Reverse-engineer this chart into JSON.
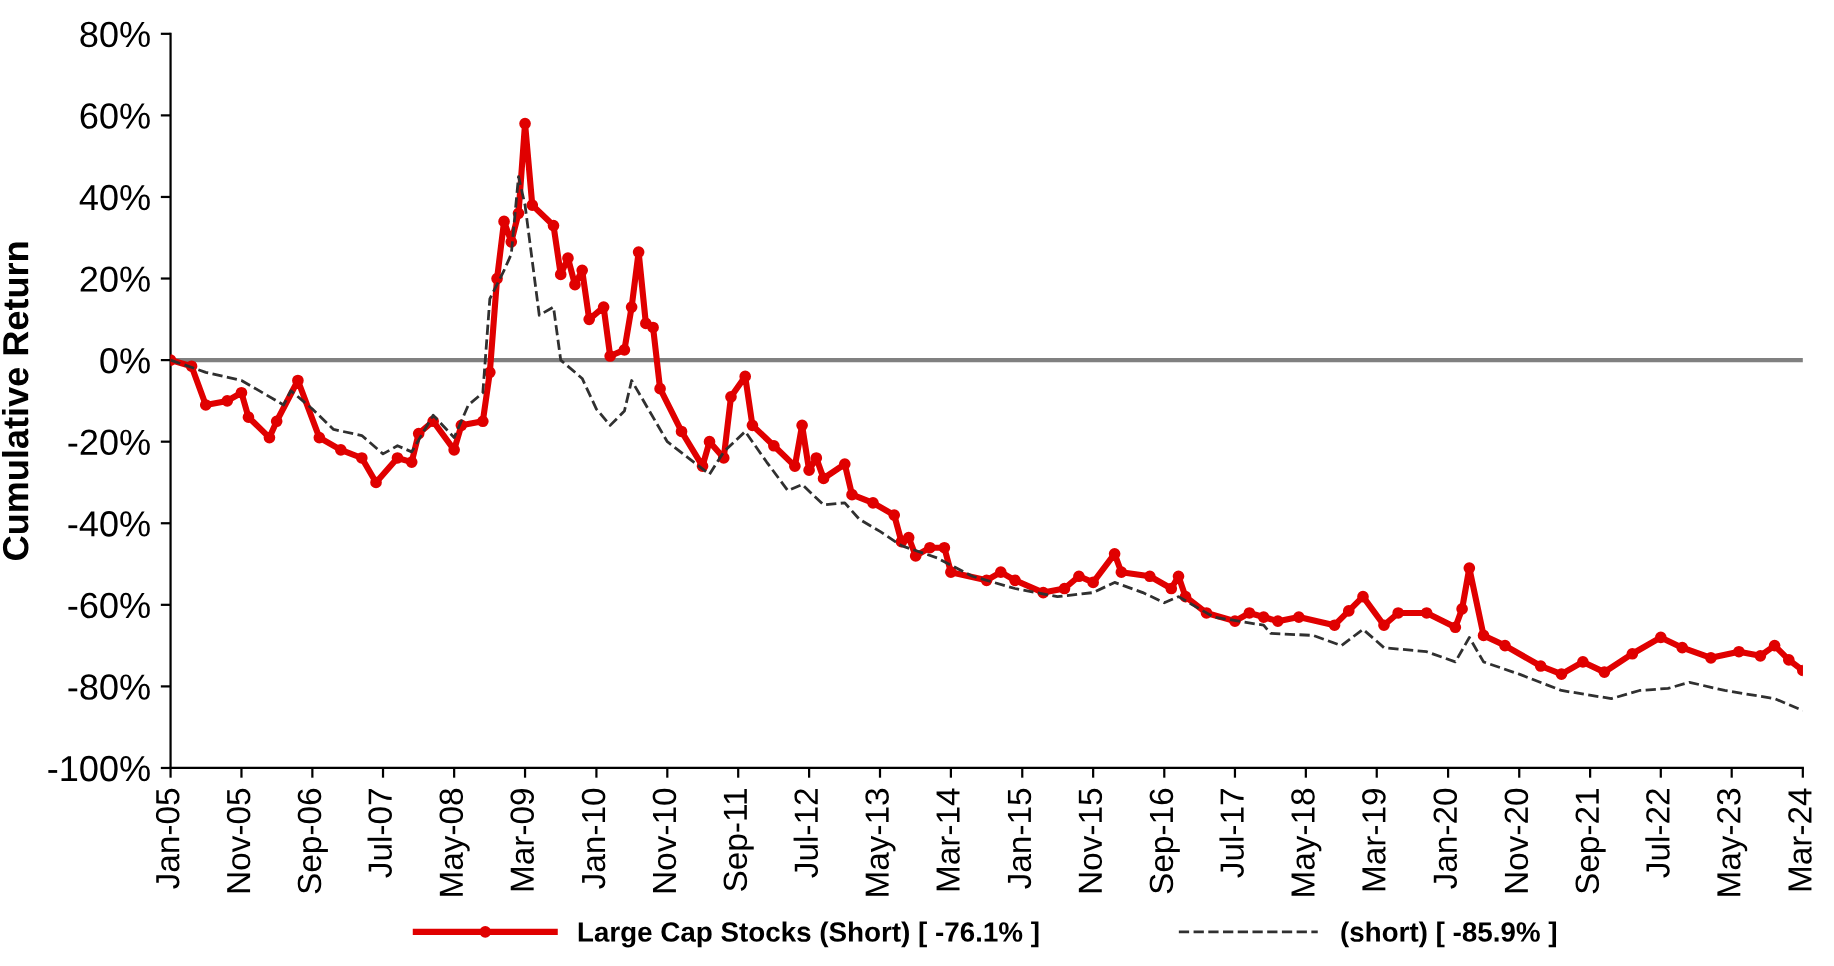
{
  "chart_data": {
    "type": "line",
    "ylabel": "Cumulative Return",
    "xlim": [
      "2005-01",
      "2024-03"
    ],
    "xticks": [
      {
        "value": "2005-01",
        "label": "Jan-05"
      },
      {
        "value": "2005-11",
        "label": "Nov-05"
      },
      {
        "value": "2006-09",
        "label": "Sep-06"
      },
      {
        "value": "2007-07",
        "label": "Jul-07"
      },
      {
        "value": "2008-05",
        "label": "May-08"
      },
      {
        "value": "2009-03",
        "label": "Mar-09"
      },
      {
        "value": "2010-01",
        "label": "Jan-10"
      },
      {
        "value": "2010-11",
        "label": "Nov-10"
      },
      {
        "value": "2011-09",
        "label": "Sep-11"
      },
      {
        "value": "2012-07",
        "label": "Jul-12"
      },
      {
        "value": "2013-05",
        "label": "May-13"
      },
      {
        "value": "2014-03",
        "label": "Mar-14"
      },
      {
        "value": "2015-01",
        "label": "Jan-15"
      },
      {
        "value": "2015-11",
        "label": "Nov-15"
      },
      {
        "value": "2016-09",
        "label": "Sep-16"
      },
      {
        "value": "2017-07",
        "label": "Jul-17"
      },
      {
        "value": "2018-05",
        "label": "May-18"
      },
      {
        "value": "2019-03",
        "label": "Mar-19"
      },
      {
        "value": "2020-01",
        "label": "Jan-20"
      },
      {
        "value": "2020-11",
        "label": "Nov-20"
      },
      {
        "value": "2021-09",
        "label": "Sep-21"
      },
      {
        "value": "2022-07",
        "label": "Jul-22"
      },
      {
        "value": "2023-05",
        "label": "May-23"
      },
      {
        "value": "2024-03",
        "label": "Mar-24"
      }
    ],
    "ylim": [
      -100,
      80
    ],
    "yticks": [
      {
        "value": -100,
        "label": "-100%"
      },
      {
        "value": -80,
        "label": "-80%"
      },
      {
        "value": -60,
        "label": "-60%"
      },
      {
        "value": -40,
        "label": "-40%"
      },
      {
        "value": -20,
        "label": "-20%"
      },
      {
        "value": 0,
        "label": "0%"
      },
      {
        "value": 20,
        "label": "20%"
      },
      {
        "value": 40,
        "label": "40%"
      },
      {
        "value": 60,
        "label": "60%"
      },
      {
        "value": 80,
        "label": "80%"
      }
    ],
    "ref_lines": [
      {
        "axis": "y",
        "value": 0,
        "color": "#808080"
      }
    ],
    "grid": false,
    "legend": "bottom",
    "series": [
      {
        "name": "Large Cap Stocks (Short) [ -76.1% ]",
        "color": "#e00000",
        "marker": "circle",
        "line_style": "solid",
        "x": [
          "2005-01",
          "2005-04",
          "2005-06",
          "2005-09",
          "2005-11",
          "2005-12",
          "2006-03",
          "2006-04",
          "2006-07",
          "2006-10",
          "2007-01",
          "2007-04",
          "2007-06",
          "2007-09",
          "2007-11",
          "2007-12",
          "2008-02",
          "2008-05",
          "2008-06",
          "2008-09",
          "2008-10",
          "2008-11",
          "2008-12",
          "2009-01",
          "2009-02",
          "2009-03",
          "2009-04",
          "2009-07",
          "2009-08",
          "2009-09",
          "2009-10",
          "2009-11",
          "2009-12",
          "2010-02",
          "2010-03",
          "2010-05",
          "2010-06",
          "2010-07",
          "2010-08",
          "2010-09",
          "2010-10",
          "2011-01",
          "2011-04",
          "2011-05",
          "2011-07",
          "2011-08",
          "2011-10",
          "2011-11",
          "2012-02",
          "2012-05",
          "2012-06",
          "2012-07",
          "2012-08",
          "2012-09",
          "2012-12",
          "2013-01",
          "2013-04",
          "2013-07",
          "2013-08",
          "2013-09",
          "2013-10",
          "2013-12",
          "2014-02",
          "2014-03",
          "2014-08",
          "2014-10",
          "2014-12",
          "2015-04",
          "2015-07",
          "2015-09",
          "2015-11",
          "2016-02",
          "2016-03",
          "2016-07",
          "2016-10",
          "2016-11",
          "2016-12",
          "2017-03",
          "2017-07",
          "2017-09",
          "2017-11",
          "2018-01",
          "2018-04",
          "2018-09",
          "2018-11",
          "2019-01",
          "2019-04",
          "2019-06",
          "2019-10",
          "2020-02",
          "2020-03",
          "2020-04",
          "2020-06",
          "2020-09",
          "2021-02",
          "2021-05",
          "2021-08",
          "2021-11",
          "2022-03",
          "2022-07",
          "2022-10",
          "2023-02",
          "2023-06",
          "2023-09",
          "2023-11",
          "2024-01",
          "2024-03"
        ],
        "values": [
          0,
          -1.5,
          -11,
          -10,
          -8,
          -14,
          -19,
          -15,
          -5,
          -19,
          -22,
          -24,
          -30,
          -24,
          -25,
          -18,
          -15,
          -22,
          -16,
          -15,
          -3,
          20,
          34,
          29,
          36,
          58,
          38,
          33,
          21,
          25,
          18.5,
          22,
          10,
          13,
          1,
          2.5,
          13,
          26.5,
          9,
          8,
          -7,
          -17.5,
          -26,
          -20,
          -24,
          -9,
          -4,
          -16,
          -21,
          -26,
          -16,
          -27,
          -24,
          -29,
          -25.5,
          -33,
          -35,
          -38,
          -44.5,
          -43.5,
          -48,
          -46,
          -46,
          -52,
          -54,
          -52,
          -54,
          -57,
          -56,
          -53,
          -54.5,
          -47.5,
          -52,
          -53,
          -56,
          -53,
          -58,
          -62,
          -64,
          -62,
          -63,
          -64,
          -63,
          -65,
          -61.5,
          -58,
          -65,
          -62,
          -62,
          -65.5,
          -61,
          -51,
          -67.5,
          -70,
          -75,
          -77,
          -74,
          -76.5,
          -72,
          -68,
          -70.5,
          -73,
          -71.5,
          -72.5,
          -70,
          -73.5,
          -76.1
        ]
      },
      {
        "name": "(short) [ -85.9% ]",
        "color": "#303030",
        "marker": "none",
        "line_style": "dashed",
        "x": [
          "2005-01",
          "2005-06",
          "2005-11",
          "2006-05",
          "2006-06",
          "2006-09",
          "2006-12",
          "2007-04",
          "2007-07",
          "2007-09",
          "2007-11",
          "2008-02",
          "2008-05",
          "2008-07",
          "2008-09",
          "2008-10",
          "2008-12",
          "2009-01",
          "2009-02",
          "2009-03",
          "2009-05",
          "2009-07",
          "2009-08",
          "2009-11",
          "2010-01",
          "2010-03",
          "2010-05",
          "2010-06",
          "2010-11",
          "2011-05",
          "2011-07",
          "2011-10",
          "2012-01",
          "2012-04",
          "2012-06",
          "2012-09",
          "2012-12",
          "2013-02",
          "2013-05",
          "2013-08",
          "2014-01",
          "2014-06",
          "2014-12",
          "2015-06",
          "2015-11",
          "2016-02",
          "2016-06",
          "2016-09",
          "2016-11",
          "2017-04",
          "2017-11",
          "2017-12",
          "2018-06",
          "2018-10",
          "2019-01",
          "2019-04",
          "2019-10",
          "2020-02",
          "2020-04",
          "2020-06",
          "2020-11",
          "2021-05",
          "2021-12",
          "2022-04",
          "2022-08",
          "2022-11",
          "2023-04",
          "2023-11",
          "2024-03"
        ],
        "values": [
          0,
          -3,
          -5,
          -11,
          -7.5,
          -12,
          -17,
          -18.5,
          -23,
          -21,
          -22.5,
          -13.5,
          -19,
          -11,
          -8,
          15,
          22,
          26,
          45,
          38,
          11,
          13,
          0,
          -4.5,
          -12,
          -16,
          -12.5,
          -5,
          -20,
          -28,
          -22.5,
          -17.5,
          -25,
          -32,
          -30.5,
          -35.5,
          -35,
          -39,
          -42,
          -45.5,
          -48.5,
          -53,
          -56,
          -58,
          -57,
          -54.5,
          -57,
          -59.5,
          -58,
          -63,
          -65,
          -67,
          -67.5,
          -70,
          -66,
          -70.5,
          -71.5,
          -74,
          -68,
          -74,
          -77,
          -81,
          -83,
          -81,
          -80.5,
          -79,
          -81,
          -83,
          -85.9
        ]
      }
    ]
  }
}
